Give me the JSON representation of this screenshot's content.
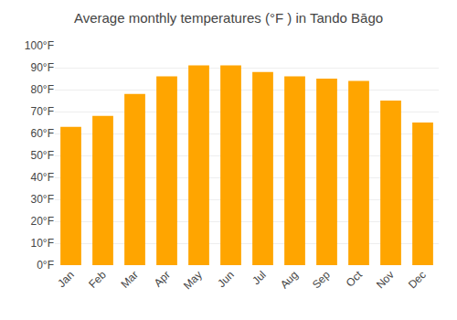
{
  "chart_data": {
    "type": "bar",
    "title": "Average monthly temperatures (°F ) in Tando Bāgo",
    "categories": [
      "Jan",
      "Feb",
      "Mar",
      "Apr",
      "May",
      "Jun",
      "Jul",
      "Aug",
      "Sep",
      "Oct",
      "Nov",
      "Dec"
    ],
    "values": [
      63,
      68,
      78,
      86,
      91,
      91,
      88,
      86,
      85,
      84,
      75,
      65
    ],
    "color": "#FFA500",
    "ylim": [
      0,
      100
    ],
    "yticks": [
      {
        "value": 0,
        "label": "0°F"
      },
      {
        "value": 10,
        "label": "10°F"
      },
      {
        "value": 20,
        "label": "20°F"
      },
      {
        "value": 30,
        "label": "30°F"
      },
      {
        "value": 40,
        "label": "40°F"
      },
      {
        "value": 50,
        "label": "50°F"
      },
      {
        "value": 60,
        "label": "60°F"
      },
      {
        "value": 70,
        "label": "70°F"
      },
      {
        "value": 80,
        "label": "80°F"
      },
      {
        "value": 90,
        "label": "90°F"
      },
      {
        "value": 100,
        "label": "100°F"
      }
    ],
    "grid": true
  }
}
